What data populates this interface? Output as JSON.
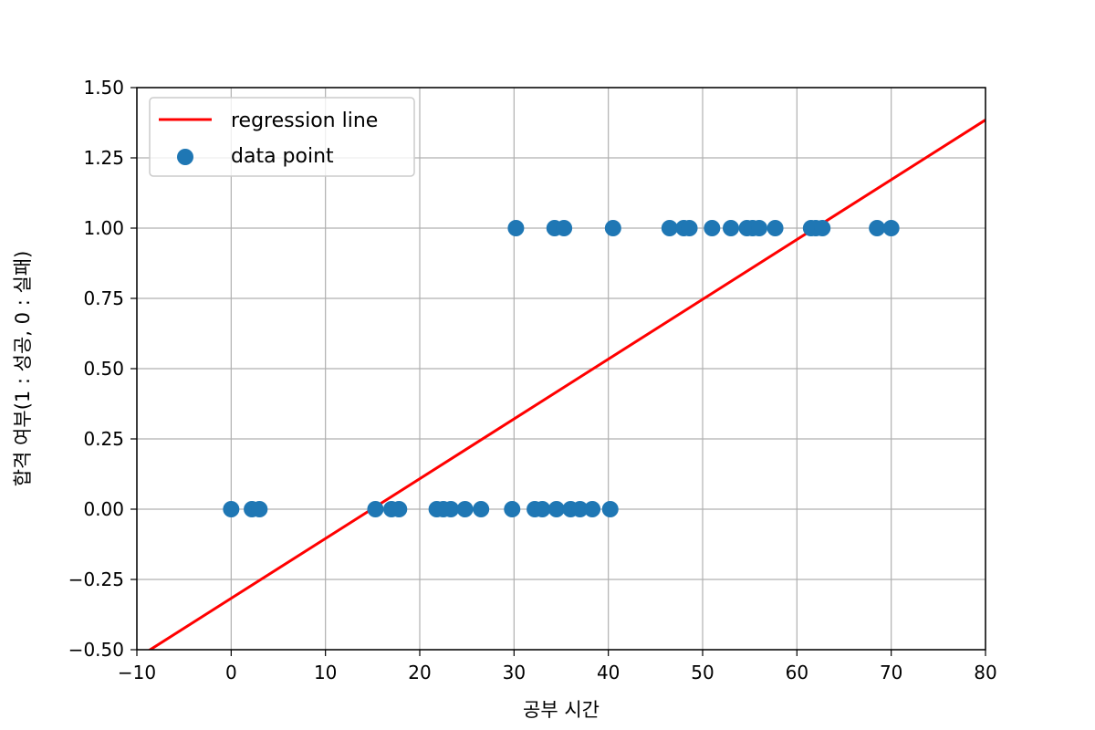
{
  "chart_data": {
    "type": "scatter",
    "title": "",
    "xlabel": "공부 시간",
    "ylabel": "합격 여부(1 : 성공, 0 : 실패)",
    "xlim": [
      -10,
      80
    ],
    "ylim": [
      -0.5,
      1.5
    ],
    "xticks": [
      -10,
      0,
      10,
      20,
      30,
      40,
      50,
      60,
      70,
      80
    ],
    "xtick_labels": [
      "−10",
      "0",
      "10",
      "20",
      "30",
      "40",
      "50",
      "60",
      "70",
      "80"
    ],
    "yticks": [
      -0.5,
      -0.25,
      0,
      0.25,
      0.5,
      0.75,
      1.0,
      1.25,
      1.5
    ],
    "ytick_labels": [
      "−0.50",
      "−0.25",
      "0.00",
      "0.25",
      "0.50",
      "0.75",
      "1.00",
      "1.25",
      "1.50"
    ],
    "grid": true,
    "legend_position": "top-left",
    "series": [
      {
        "name": "regression line",
        "type": "line",
        "color": "#ff0000",
        "x": [
          -10,
          80
        ],
        "y": [
          -0.53,
          1.385
        ]
      },
      {
        "name": "data point",
        "type": "scatter",
        "color": "#1f77b4",
        "x": [
          0,
          2.2,
          3,
          15.3,
          17,
          17.8,
          21.8,
          22.5,
          23.3,
          24.8,
          26.5,
          29.8,
          32.2,
          33,
          34.5,
          36,
          37,
          38.3,
          40.2,
          30.2,
          34.3,
          35.3,
          40.5,
          46.5,
          48,
          48.6,
          51,
          53,
          54.7,
          55.3,
          56,
          57.7,
          61.5,
          62,
          62.7,
          68.5,
          70
        ],
        "y": [
          0,
          0,
          0,
          0,
          0,
          0,
          0,
          0,
          0,
          0,
          0,
          0,
          0,
          0,
          0,
          0,
          0,
          0,
          0,
          1,
          1,
          1,
          1,
          1,
          1,
          1,
          1,
          1,
          1,
          1,
          1,
          1,
          1,
          1,
          1,
          1,
          1
        ]
      }
    ]
  }
}
